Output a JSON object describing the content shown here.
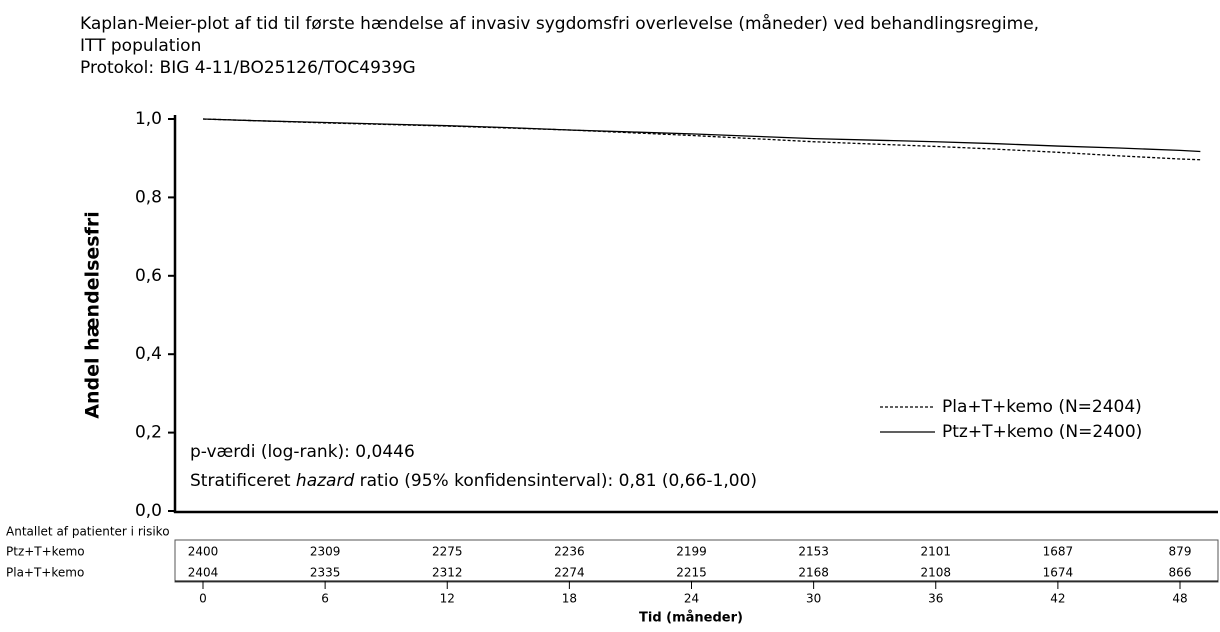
{
  "chart_data": {
    "type": "line",
    "title": [
      "Kaplan-Meier-plot  af tid til første hændelse af invasiv sygdomsfri overlevelse (måneder) ved behandlingsregime,",
      "ITT population"
    ],
    "subtitle": "Protokol: BIG 4-11/BO25126/TOC4939G",
    "y_label": "Andel hændelsesfri",
    "x_label": "Tid (måneder)",
    "x": [
      0,
      3,
      6,
      9,
      12,
      15,
      18,
      21,
      24,
      27,
      30,
      33,
      36,
      39,
      42,
      45,
      48,
      49
    ],
    "series": [
      {
        "name": "Pla+T+kemo (N=2404)",
        "color": "#000000",
        "style": "dashed",
        "values": [
          1.0,
          0.995,
          0.99,
          0.986,
          0.982,
          0.977,
          0.972,
          0.965,
          0.958,
          0.95,
          0.942,
          0.936,
          0.93,
          0.923,
          0.915,
          0.906,
          0.898,
          0.896
        ]
      },
      {
        "name": "Ptz+T+kemo (N=2400)",
        "color": "#000000",
        "style": "solid",
        "values": [
          1.0,
          0.995,
          0.991,
          0.987,
          0.983,
          0.978,
          0.972,
          0.967,
          0.962,
          0.956,
          0.95,
          0.946,
          0.942,
          0.937,
          0.931,
          0.926,
          0.92,
          0.917
        ]
      }
    ],
    "xlim": [
      0,
      48
    ],
    "xticks": [
      0,
      6,
      12,
      18,
      24,
      30,
      36,
      42,
      48
    ],
    "ylim": [
      0,
      1
    ],
    "yticks": [
      {
        "value": 0,
        "label": "0,0"
      },
      {
        "value": 0.2,
        "label": "0,2"
      },
      {
        "value": 0.4,
        "label": "0,4"
      },
      {
        "value": 0.6,
        "label": "0,6"
      },
      {
        "value": 0.8,
        "label": "0,8"
      },
      {
        "value": 1,
        "label": "1,0"
      }
    ],
    "annotations": [
      "p-værdi (log-rank):  0,0446",
      [
        "Stratificeret ",
        "hazard",
        " ratio (95% konfidensinterval):  0,81 (0,66-1,00)"
      ]
    ],
    "legend": "lower-right",
    "risk_table": {
      "title": "Antallet af patienter i risiko",
      "rows": [
        {
          "name": "Ptz+T+kemo",
          "values": [
            2400,
            2309,
            2275,
            2236,
            2199,
            2153,
            2101,
            1687,
            879
          ]
        },
        {
          "name": "Pla+T+kemo",
          "values": [
            2404,
            2335,
            2312,
            2274,
            2215,
            2168,
            2108,
            1674,
            866
          ]
        }
      ]
    }
  }
}
